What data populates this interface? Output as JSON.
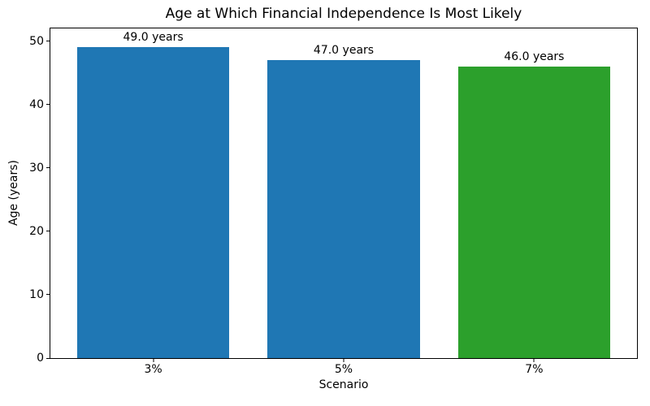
{
  "chart_data": {
    "type": "bar",
    "title": "Age at Which Financial Independence Is Most Likely",
    "xlabel": "Scenario",
    "ylabel": "Age (years)",
    "categories": [
      "3%",
      "5%",
      "7%"
    ],
    "values": [
      49.0,
      47.0,
      46.0
    ],
    "bar_labels": [
      "49.0 years",
      "47.0 years",
      "46.0 years"
    ],
    "bar_colors": [
      "#1f77b4",
      "#1f77b4",
      "#2ca02c"
    ],
    "bar_width": 0.8,
    "xlim": [
      -0.54,
      2.54
    ],
    "ylim": [
      0,
      52
    ],
    "yticks": [
      0,
      10,
      20,
      30,
      40,
      50
    ],
    "grid": false,
    "legend_position": "none",
    "spine_color": "#000000",
    "background_color": "#ffffff",
    "text_color": "#000000"
  }
}
